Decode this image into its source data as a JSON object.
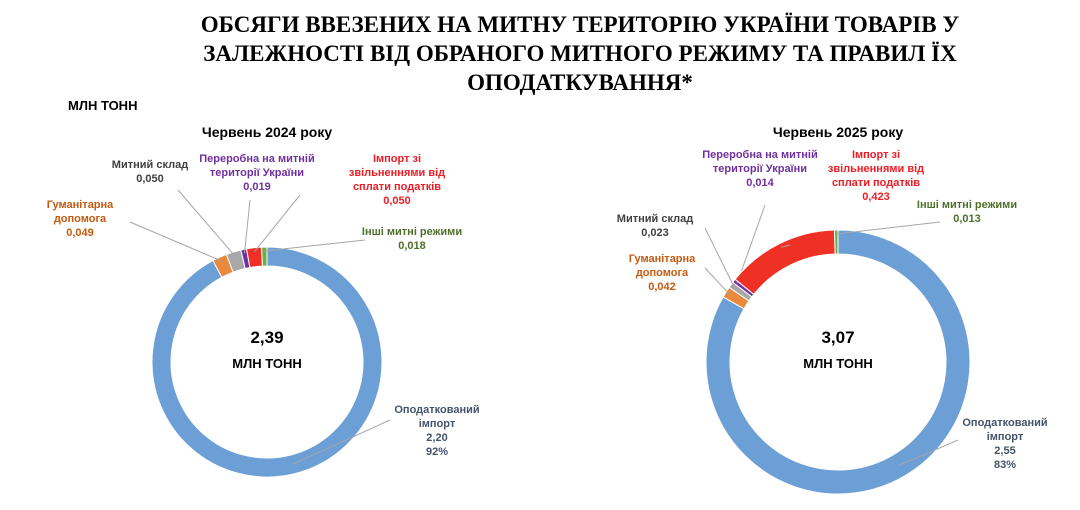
{
  "title": "ОБСЯГИ ВВЕЗЕНИХ НА МИТНУ ТЕРИТОРІЮ УКРАЇНИ ТОВАРІВ У ЗАЛЕЖНОСТІ ВІД ОБРАНОГО МИТНОГО РЕЖИМУ ТА ПРАВИЛ ЇХ ОПОДАТКУВАННЯ*",
  "unit": "МЛН ТОНН",
  "chart_data": [
    {
      "type": "donut",
      "title": "Червень 2024 року",
      "center_label": "2,39",
      "center_unit": "МЛН ТОНН",
      "categories": [
        "Оподаткований імпорт",
        "Гуманітарна допомога",
        "Митний склад",
        "Переробна на митній території України",
        "Імпорт зі звільненнями від сплати податків",
        "Інші митні режими"
      ],
      "values": [
        2.2,
        0.049,
        0.05,
        0.019,
        0.05,
        0.018
      ],
      "value_labels": [
        "2,20",
        "0,049",
        "0,050",
        "0,019",
        "0,050",
        "0,018"
      ],
      "share_labels": [
        "92%",
        null,
        null,
        null,
        null,
        null
      ],
      "colors": [
        "#6b9fd6",
        "#e8893b",
        "#a8a8a8",
        "#7030a0",
        "#ee3124",
        "#70ad47"
      ]
    },
    {
      "type": "donut",
      "title": "Червень 2025  року",
      "center_label": "3,07",
      "center_unit": "МЛН ТОНН",
      "categories": [
        "Оподаткований імпорт",
        "Гуманітарна допомога",
        "Митний склад",
        "Переробна на митній території України",
        "Імпорт зі звільненнями від сплати податків",
        "Інші митні режими"
      ],
      "values": [
        2.55,
        0.042,
        0.023,
        0.014,
        0.423,
        0.013
      ],
      "value_labels": [
        "2,55",
        "0,042",
        "0,023",
        "0,014",
        "0,423",
        "0,013"
      ],
      "share_labels": [
        "83%",
        null,
        null,
        null,
        null,
        null
      ],
      "colors": [
        "#6b9fd6",
        "#e8893b",
        "#a8a8a8",
        "#7030a0",
        "#ee3124",
        "#70ad47"
      ]
    }
  ]
}
